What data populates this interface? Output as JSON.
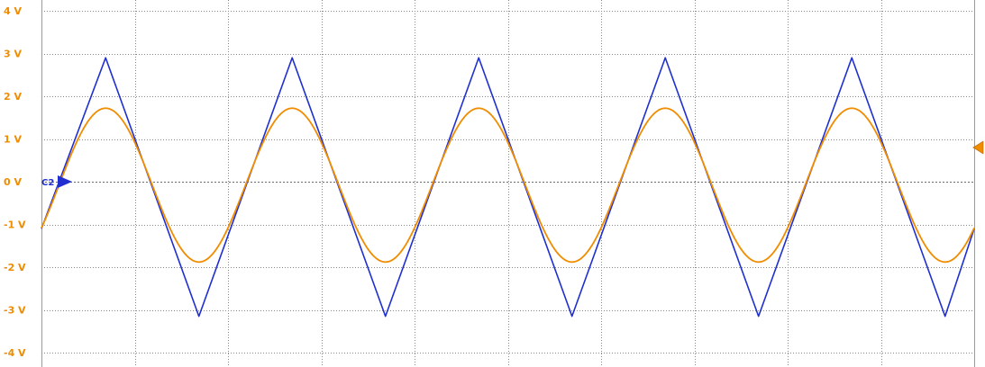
{
  "chart_data": {
    "type": "line",
    "title": "",
    "xlabel": "",
    "ylabel": "",
    "ylim": [
      -4.2,
      4.2
    ],
    "xlim": [
      0,
      10
    ],
    "grid": true,
    "y_ticks": [
      {
        "value": 4,
        "label": "4 V"
      },
      {
        "value": 3,
        "label": "3 V"
      },
      {
        "value": 2,
        "label": "2 V"
      },
      {
        "value": 1,
        "label": "1 V"
      },
      {
        "value": 0,
        "label": "0 V"
      },
      {
        "value": -1,
        "label": "-1 V"
      },
      {
        "value": -2,
        "label": "-2 V"
      },
      {
        "value": -3,
        "label": "-3 V"
      },
      {
        "value": -4,
        "label": "-4 V"
      }
    ],
    "x_divisions": 10,
    "series": [
      {
        "kind": "triangle",
        "color": "#1f2fd0",
        "marker_label": "C2",
        "marker_level": 0,
        "x": [
          0,
          0.688,
          1.688,
          2.688,
          3.688,
          4.688,
          5.688,
          6.688,
          7.688,
          8.688,
          9.688,
          10
        ],
        "y": [
          -1.1,
          2.9,
          -3.15,
          2.9,
          -3.15,
          2.9,
          -3.15,
          2.9,
          -3.15,
          2.9,
          -3.15,
          -1.1
        ]
      },
      {
        "kind": "sine",
        "color": "#f08c00",
        "marker_level": 0.8,
        "amplitude": 1.8,
        "offset": -0.08,
        "period_div": 2.0,
        "peak_x": 0.688
      }
    ]
  }
}
